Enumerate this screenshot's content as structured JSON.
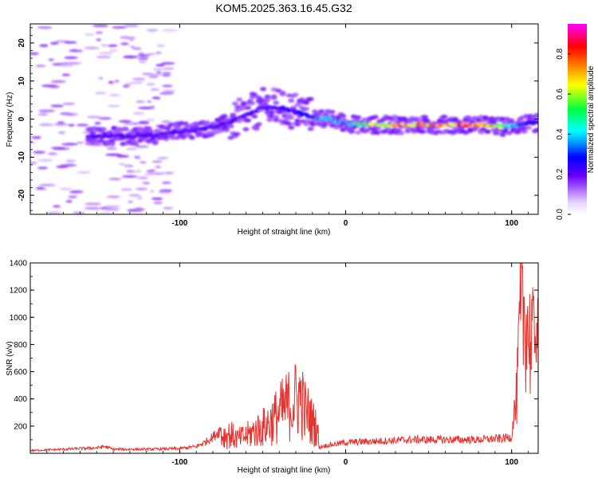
{
  "title": "KOM5.2025.363.16.45.G32",
  "chart_data": [
    {
      "type": "heatmap",
      "xlabel": "Height of straight line (km)",
      "ylabel": "Frequency (Hz)",
      "xlim": [
        -190,
        116
      ],
      "ylim": [
        -25,
        25
      ],
      "xticks": [
        -100,
        0,
        100
      ],
      "yticks": [
        -20,
        -10,
        0,
        10,
        20
      ],
      "grid": false,
      "colorbar": {
        "label": "Normalized spectral amplitude",
        "range": [
          0,
          0.95
        ],
        "ticks": [
          "0.0",
          "0.2",
          "0.4",
          "0.6",
          "0.8"
        ],
        "colormap": [
          "#ffffff",
          "#e6d7ff",
          "#b57aff",
          "#6a00ff",
          "#0000ff",
          "#00a0ff",
          "#00ffff",
          "#00ff40",
          "#ffff00",
          "#ff8000",
          "#ff0000",
          "#ff00ff"
        ]
      },
      "ridge": {
        "x": [
          -150,
          -130,
          -110,
          -100,
          -90,
          -80,
          -70,
          -60,
          -50,
          -40,
          -30,
          -20,
          -10,
          0,
          10,
          20,
          40,
          60,
          80,
          95,
          105,
          115
        ],
        "y": [
          -4.5,
          -4.5,
          -4,
          -3,
          -3,
          -2,
          -1,
          1,
          3,
          3,
          2,
          0.5,
          0,
          -1,
          -1.5,
          -1.5,
          -1.5,
          -1.5,
          -1.5,
          -2,
          -1.5,
          -1
        ],
        "amplitude": [
          0.22,
          0.2,
          0.18,
          0.2,
          0.2,
          0.2,
          0.18,
          0.22,
          0.2,
          0.22,
          0.25,
          0.3,
          0.45,
          0.4,
          0.55,
          0.7,
          0.8,
          0.75,
          0.9,
          0.6,
          0.3,
          0.3
        ]
      }
    },
    {
      "type": "line",
      "xlabel": "Height of straight line (km)",
      "ylabel": "SNR (v/v)",
      "xlim": [
        -190,
        116
      ],
      "ylim": [
        0,
        1400
      ],
      "xticks": [
        -100,
        0,
        100
      ],
      "yticks": [
        200,
        400,
        600,
        800,
        1000,
        1200,
        1400
      ],
      "grid": false,
      "series": [
        {
          "color": "#e8332e",
          "x": [
            -190,
            -170,
            -150,
            -145,
            -140,
            -120,
            -100,
            -90,
            -85,
            -80,
            -75,
            -70,
            -65,
            -60,
            -55,
            -50,
            -45,
            -40,
            -35,
            -30,
            -27,
            -25,
            -22,
            -20,
            -17,
            -16,
            -15,
            -10,
            0,
            20,
            40,
            60,
            80,
            95,
            100,
            103,
            105,
            107,
            109,
            111,
            113,
            116
          ],
          "y": [
            20,
            30,
            40,
            50,
            30,
            30,
            35,
            50,
            80,
            120,
            180,
            200,
            150,
            180,
            230,
            270,
            330,
            420,
            500,
            560,
            600,
            450,
            400,
            320,
            280,
            40,
            50,
            60,
            80,
            90,
            100,
            100,
            100,
            110,
            120,
            500,
            1150,
            1300,
            1250,
            1050,
            920,
            910
          ]
        }
      ]
    }
  ]
}
